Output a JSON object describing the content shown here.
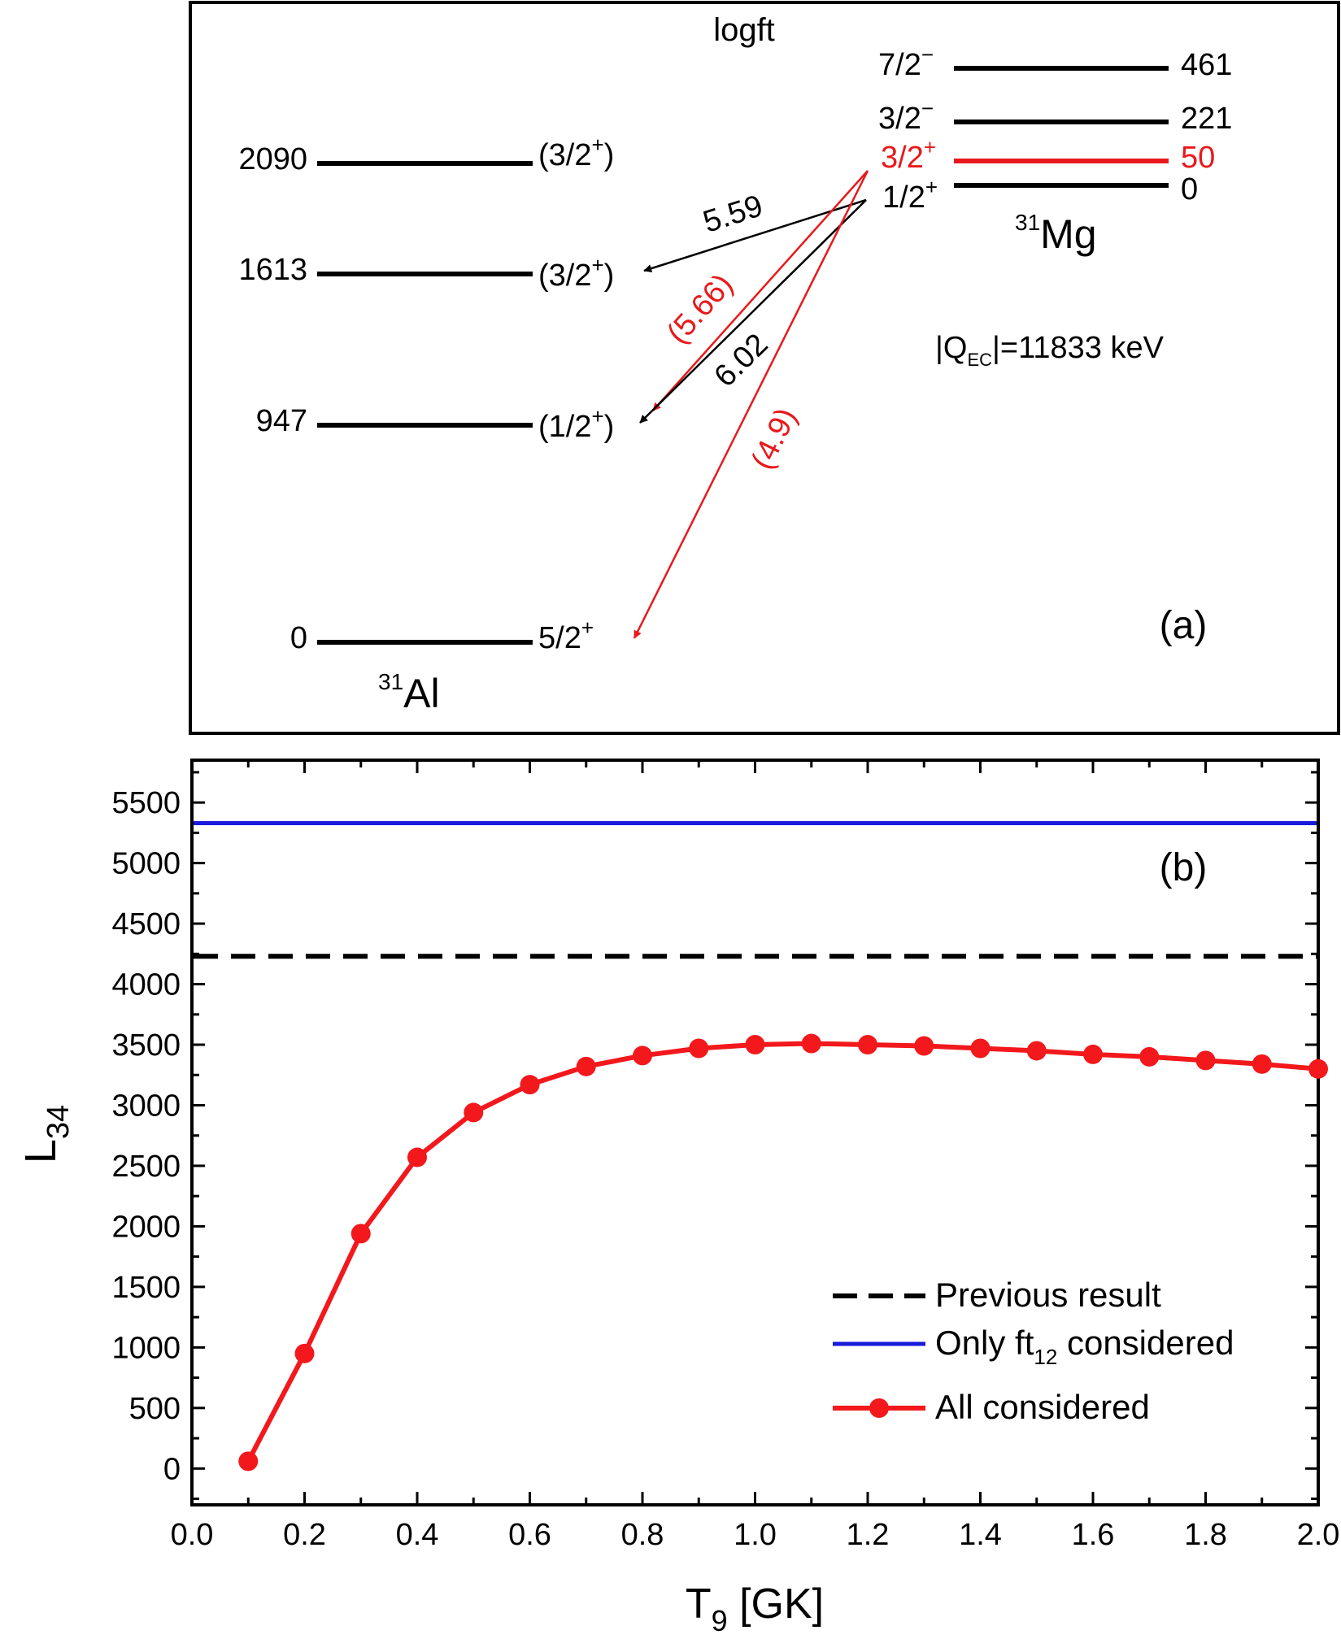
{
  "panel_a": {
    "panel_label": "(a)",
    "header": "logft",
    "q_value": "|Q",
    "q_sub": "EC",
    "q_rest": "|=11833 keV",
    "al": {
      "mass": "31",
      "element": "Al",
      "levels": [
        {
          "energy": "2090",
          "spin": "(3/2",
          "parity": "+",
          "close": ")"
        },
        {
          "energy": "1613",
          "spin": "(3/2",
          "parity": "+",
          "close": ")"
        },
        {
          "energy": "947",
          "spin": "(1/2",
          "parity": "+",
          "close": ")"
        },
        {
          "energy": "0",
          "spin": "5/2",
          "parity": "+",
          "close": ""
        }
      ]
    },
    "mg": {
      "mass": "31",
      "element": "Mg",
      "levels": [
        {
          "energy": "461",
          "spin": "7/2",
          "parity": "−",
          "color": "#000000"
        },
        {
          "energy": "221",
          "spin": "3/2",
          "parity": "−",
          "color": "#000000"
        },
        {
          "energy": "50",
          "spin": "3/2",
          "parity": "+",
          "color": "#e8191c"
        },
        {
          "energy": "0",
          "spin": "1/2",
          "parity": "+",
          "color": "#000000"
        }
      ]
    },
    "transitions": [
      {
        "from": "1/2+ (0)",
        "to": "(3/2+) 1613",
        "logft": "5.59",
        "color": "#000000"
      },
      {
        "from": "3/2+ (50)",
        "to": "(1/2+) 947",
        "logft": "(5.66)",
        "color": "#e8191c"
      },
      {
        "from": "1/2+ (0)",
        "to": "(1/2+) 947",
        "logft": "6.02",
        "color": "#000000"
      },
      {
        "from": "3/2+ (50)",
        "to": "5/2+ 0",
        "logft": "(4.9)",
        "color": "#e8191c"
      }
    ]
  },
  "chart_data": {
    "type": "line",
    "panel_label": "(b)",
    "ylabel": "L",
    "ylabel_sub": "34",
    "xlabel": "T",
    "xlabel_sub": "9",
    "xlabel_rest": " [GK]",
    "xlim": [
      0.0,
      2.0
    ],
    "ylim": [
      -300,
      5850
    ],
    "x_ticks": [
      "0.0",
      "0.2",
      "0.4",
      "0.6",
      "0.8",
      "1.0",
      "1.2",
      "1.4",
      "1.6",
      "1.8",
      "2.0"
    ],
    "y_ticks": [
      "0",
      "500",
      "1000",
      "1500",
      "2000",
      "2500",
      "3000",
      "3500",
      "4000",
      "4500",
      "5000",
      "5500"
    ],
    "legend_position": "bottom-right",
    "series": [
      {
        "name": "Previous result",
        "style": "dashed",
        "color": "#000000",
        "constant": 4230
      },
      {
        "name": "Only ft",
        "name_sub": "12",
        "name_rest": " considered",
        "style": "solid",
        "color": "#1a1adc",
        "constant": 5330
      },
      {
        "name": "All considered",
        "style": "line-marker",
        "color": "#f2181c",
        "x": [
          0.1,
          0.2,
          0.3,
          0.4,
          0.5,
          0.6,
          0.7,
          0.8,
          0.9,
          1.0,
          1.1,
          1.2,
          1.3,
          1.4,
          1.5,
          1.6,
          1.7,
          1.8,
          1.9,
          2.0
        ],
        "y": [
          60,
          950,
          1940,
          2570,
          2940,
          3170,
          3320,
          3410,
          3470,
          3500,
          3510,
          3500,
          3490,
          3470,
          3450,
          3420,
          3400,
          3370,
          3340,
          3300
        ]
      }
    ]
  }
}
